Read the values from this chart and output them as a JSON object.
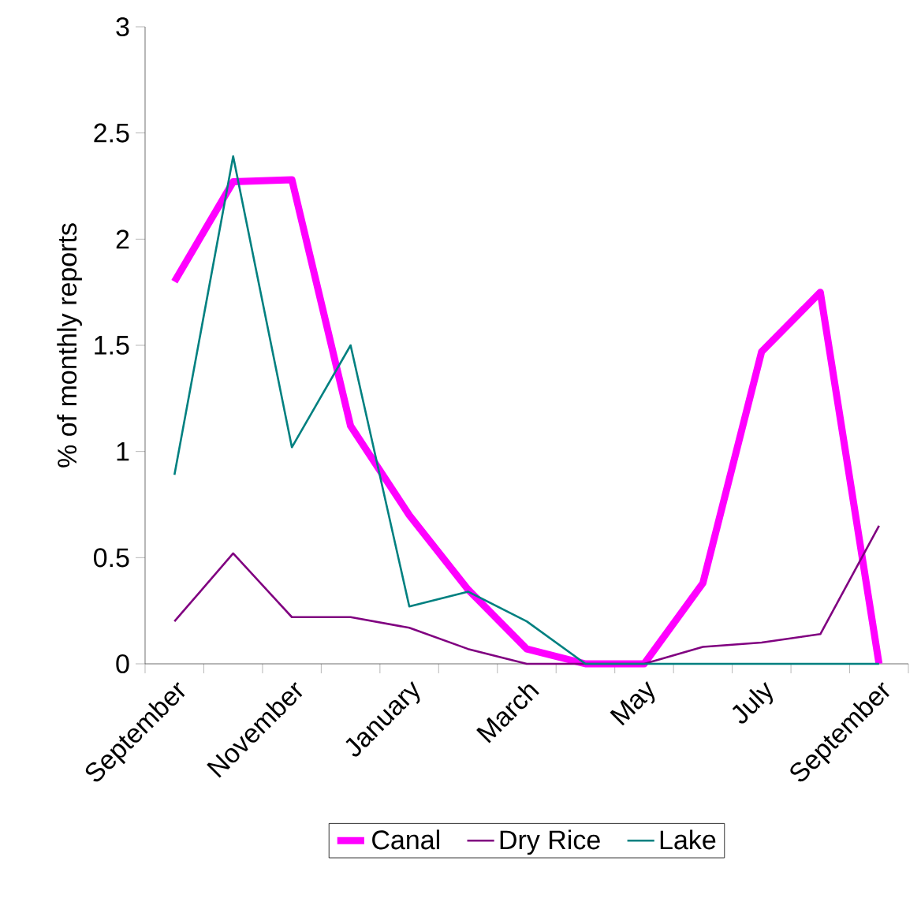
{
  "chart_data": {
    "type": "line",
    "ylabel": "% of monthly reports",
    "categories": [
      "September",
      null,
      "November",
      null,
      "January",
      null,
      "March",
      null,
      "May",
      null,
      "July",
      null,
      "September"
    ],
    "series": [
      {
        "name": "Canal",
        "color": "#ff00ff",
        "values": [
          1.8,
          2.27,
          2.28,
          1.12,
          0.7,
          0.35,
          0.07,
          0,
          0,
          0.38,
          1.47,
          1.75,
          0
        ]
      },
      {
        "name": "Dry Rice",
        "color": "#800080",
        "values": [
          0.2,
          0.52,
          0.22,
          0.22,
          0.17,
          0.07,
          0,
          0,
          0,
          0.08,
          0.1,
          0.14,
          0.65
        ]
      },
      {
        "name": "Lake",
        "color": "#008080",
        "values": [
          0.89,
          2.39,
          1.02,
          1.5,
          0.27,
          0.34,
          0.2,
          0,
          0,
          0,
          0,
          0,
          0
        ]
      }
    ],
    "ylim": [
      0,
      3
    ],
    "yticks": [
      0,
      0.5,
      1,
      1.5,
      2,
      2.5,
      3
    ],
    "legend": "bottom",
    "marker": "none"
  }
}
